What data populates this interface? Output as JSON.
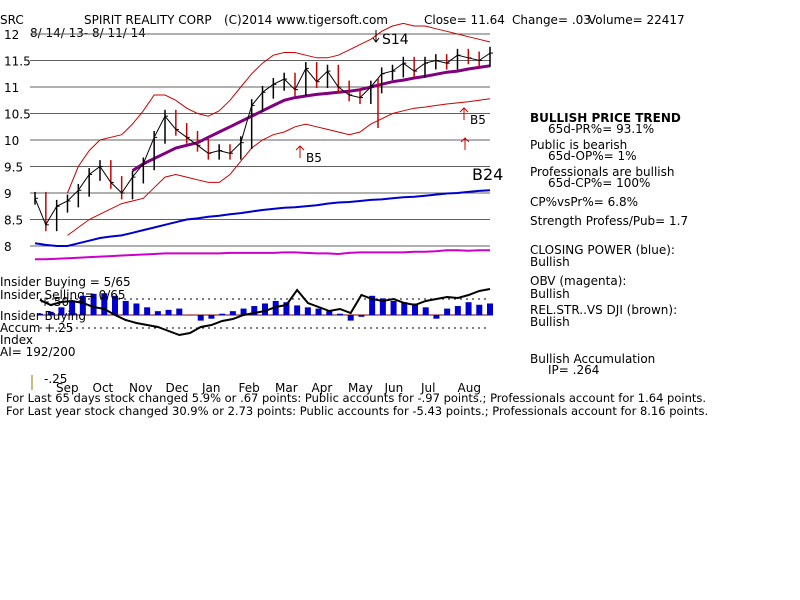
{
  "header": {
    "symbol": "SRC",
    "company": "SPIRIT REALITY CORP",
    "copyright": "(C)2014 www.tigersoft.com",
    "close": "Close=  11.64",
    "change": "Change= .03",
    "volume": "Volume= 22417",
    "date_range": "8/ 14/ 13- 8/ 11/ 14"
  },
  "colors": {
    "price": "#000000",
    "bands": "#cc0000",
    "ma": "#800080",
    "closing_power": "#0000cc",
    "obv": "#cc00cc",
    "accum": "#0000cc",
    "relstr": "#000000",
    "grid": "#606060"
  },
  "chart_data": {
    "type": "line",
    "y_ticks": [
      "12",
      "11.5",
      "11",
      "10.5",
      "10",
      "9.5",
      "9",
      "8.5",
      "8"
    ],
    "ylim": [
      7.8,
      12.2
    ],
    "x_tick_labels": [
      "Sep",
      "Oct",
      "Nov",
      "Dec",
      "Jan",
      "Feb",
      "Mar",
      "Apr",
      "May",
      "Jun",
      "Jul",
      "Aug"
    ],
    "series": [
      {
        "key": "price",
        "values": [
          8.9,
          8.4,
          8.75,
          8.85,
          9.05,
          9.35,
          9.5,
          9.2,
          9.0,
          9.3,
          9.55,
          10.05,
          10.45,
          10.2,
          10.05,
          9.9,
          9.75,
          9.8,
          9.75,
          9.95,
          10.65,
          10.9,
          11.05,
          11.15,
          10.95,
          11.35,
          11.1,
          11.3,
          11.0,
          10.85,
          10.8,
          11.0,
          11.25,
          11.3,
          11.45,
          11.3,
          11.45,
          11.5,
          11.45,
          11.6,
          11.55,
          11.5,
          11.64
        ]
      },
      {
        "key": "ma_purple",
        "values": [
          null,
          null,
          null,
          null,
          null,
          null,
          null,
          null,
          null,
          9.42,
          9.55,
          9.65,
          9.75,
          9.85,
          9.9,
          9.95,
          10.05,
          10.15,
          10.25,
          10.35,
          10.45,
          10.55,
          10.65,
          10.75,
          10.8,
          10.83,
          10.86,
          10.88,
          10.9,
          10.92,
          10.95,
          11.0,
          11.05,
          11.1,
          11.13,
          11.17,
          11.2,
          11.24,
          11.28,
          11.3,
          11.34,
          11.37,
          11.4
        ]
      },
      {
        "key": "upper_band",
        "values": [
          null,
          null,
          null,
          9.0,
          9.5,
          9.8,
          10.0,
          10.05,
          10.1,
          10.3,
          10.55,
          10.85,
          10.85,
          10.75,
          10.6,
          10.5,
          10.45,
          10.55,
          10.75,
          11.0,
          11.25,
          11.45,
          11.6,
          11.65,
          11.65,
          11.6,
          11.55,
          11.55,
          11.6,
          11.7,
          11.8,
          11.9,
          12.05,
          12.15,
          12.2,
          12.15,
          12.15,
          12.1,
          12.05,
          12.0,
          11.95,
          11.9,
          11.85
        ]
      },
      {
        "key": "lower_band",
        "values": [
          null,
          null,
          null,
          8.2,
          8.35,
          8.5,
          8.6,
          8.7,
          8.8,
          8.85,
          8.9,
          9.1,
          9.3,
          9.35,
          9.3,
          9.25,
          9.2,
          9.2,
          9.35,
          9.6,
          9.85,
          10.0,
          10.1,
          10.15,
          10.25,
          10.3,
          10.25,
          10.2,
          10.15,
          10.1,
          10.15,
          10.3,
          10.4,
          10.5,
          10.55,
          10.6,
          10.62,
          10.65,
          10.68,
          10.7,
          10.72,
          10.75,
          10.78
        ]
      },
      {
        "key": "closing_power",
        "values": [
          8.05,
          8.02,
          8.0,
          8.0,
          8.05,
          8.1,
          8.15,
          8.18,
          8.2,
          8.25,
          8.3,
          8.35,
          8.4,
          8.45,
          8.5,
          8.52,
          8.55,
          8.57,
          8.6,
          8.62,
          8.65,
          8.68,
          8.7,
          8.72,
          8.73,
          8.75,
          8.77,
          8.8,
          8.82,
          8.83,
          8.85,
          8.87,
          8.88,
          8.9,
          8.92,
          8.93,
          8.95,
          8.97,
          8.99,
          9.0,
          9.02,
          9.04,
          9.05
        ]
      },
      {
        "key": "obv",
        "values": [
          7.75,
          7.75,
          7.76,
          7.77,
          7.78,
          7.79,
          7.8,
          7.81,
          7.82,
          7.83,
          7.84,
          7.85,
          7.86,
          7.86,
          7.86,
          7.86,
          7.86,
          7.86,
          7.87,
          7.87,
          7.87,
          7.87,
          7.87,
          7.88,
          7.88,
          7.87,
          7.86,
          7.86,
          7.85,
          7.87,
          7.88,
          7.88,
          7.88,
          7.88,
          7.88,
          7.89,
          7.89,
          7.9,
          7.92,
          7.92,
          7.91,
          7.92,
          7.92
        ]
      }
    ],
    "annotations": [
      "S14",
      "B5",
      "B5",
      "B24"
    ]
  },
  "lower_panel": {
    "labels": [
      "Insider Buying = 5/65",
      "Insider Selling= 0/65",
      "+.50",
      "Insider Buying",
      "Accum  +.25",
      "Index",
      "AI= 192/200",
      "-.25"
    ],
    "accum_values": [
      0.02,
      0.05,
      0.12,
      0.22,
      0.3,
      0.33,
      0.34,
      0.3,
      0.22,
      0.18,
      0.12,
      0.06,
      0.08,
      0.1,
      0.0,
      -0.08,
      -0.05,
      0.02,
      0.06,
      0.1,
      0.14,
      0.18,
      0.22,
      0.2,
      0.15,
      0.12,
      0.1,
      0.06,
      0.02,
      -0.08,
      -0.02,
      0.3,
      0.26,
      0.22,
      0.2,
      0.18,
      0.12,
      -0.05,
      0.1,
      0.14,
      0.2,
      0.16,
      0.18
    ],
    "relstr_values": [
      0.45,
      0.4,
      0.43,
      0.44,
      0.42,
      0.38,
      0.36,
      0.3,
      0.25,
      0.22,
      0.2,
      0.18,
      0.14,
      0.1,
      0.12,
      0.18,
      0.2,
      0.24,
      0.26,
      0.3,
      0.32,
      0.34,
      0.38,
      0.4,
      0.55,
      0.42,
      0.38,
      0.34,
      0.36,
      0.32,
      0.5,
      0.46,
      0.44,
      0.46,
      0.42,
      0.4,
      0.44,
      0.46,
      0.48,
      0.47,
      0.5,
      0.54,
      0.56
    ]
  },
  "right_panel": {
    "lines": [
      {
        "text": "BULLISH PRICE TREND",
        "indent": false,
        "bold": true
      },
      {
        "text": "65d-PR%= 93.1%",
        "indent": true,
        "bold": false
      },
      {
        "text": "Public is bearish",
        "indent": false,
        "bold": false
      },
      {
        "text": "65d-OP%= 1%",
        "indent": true,
        "bold": false
      },
      {
        "text": "Professionals are bullish",
        "indent": false,
        "bold": false
      },
      {
        "text": "65d-CP%= 100%",
        "indent": true,
        "bold": false
      },
      {
        "text": "CP%vsPr%=  6.8%",
        "indent": false,
        "bold": false
      },
      {
        "text": "Strength Profess/Pub= 1.7",
        "indent": false,
        "bold": false
      },
      {
        "text": "CLOSING POWER (blue):",
        "indent": false,
        "bold": false
      },
      {
        "text": "Bullish",
        "indent": false,
        "bold": false
      },
      {
        "text": "OBV (magenta):",
        "indent": false,
        "bold": false
      },
      {
        "text": "Bullish",
        "indent": false,
        "bold": false
      },
      {
        "text": "REL.STR..VS DJI (brown):",
        "indent": false,
        "bold": false
      },
      {
        "text": "Bullish",
        "indent": false,
        "bold": false
      },
      {
        "text": "Bullish Accumulation",
        "indent": false,
        "bold": false
      },
      {
        "text": "IP=  .264",
        "indent": true,
        "bold": false
      }
    ]
  },
  "footer": {
    "line1": "For Last 65 days stock changed  5.9% or  .67 points:  Public accounts for -.97 points.;  Professionals account for  1.64 points.",
    "line2": "For Last year stock changed  30.9% or  2.73 points:  Public accounts for -5.43 points.;  Professionals account for  8.16 points."
  }
}
